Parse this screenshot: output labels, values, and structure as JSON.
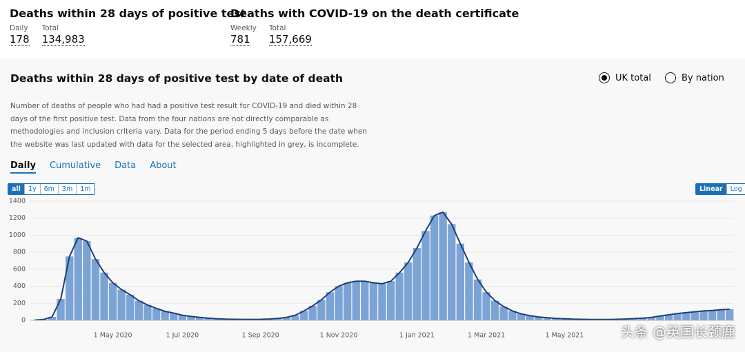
{
  "header": {
    "blocks": [
      {
        "title": "Deaths within 28 days of positive test",
        "metrics": [
          {
            "label": "Daily",
            "value": "178"
          },
          {
            "label": "Total",
            "value": "134,983"
          }
        ]
      },
      {
        "title": "Deaths with COVID-19 on the death certificate",
        "metrics": [
          {
            "label": "Weekly",
            "value": "781"
          },
          {
            "label": "Total",
            "value": "157,669"
          }
        ]
      }
    ]
  },
  "card": {
    "title": "Deaths within 28 days of positive test by date of death",
    "options": [
      "UK total",
      "By nation"
    ],
    "description": "Number of deaths of people who had had a positive test result for COVID-19 and died within 28 days of the first positive test. Data from the four nations are not directly comparable as methodologies and inclusion criteria vary. Data for the period ending 5 days before the date when the website was last updated with data for the selected area, highlighted in grey, is incomplete.",
    "tabs": [
      "Daily",
      "Cumulative",
      "Data",
      "About"
    ],
    "range_buttons": [
      "all",
      "1y",
      "6m",
      "3m",
      "1m"
    ],
    "scale_buttons": [
      "Linear",
      "Log"
    ]
  },
  "chart_data": {
    "type": "bar",
    "categories": [
      null,
      null,
      null,
      null,
      null,
      null,
      null,
      null,
      null,
      "1 May 2020",
      null,
      null,
      null,
      null,
      null,
      null,
      null,
      "1 Jul 2020",
      null,
      null,
      null,
      null,
      null,
      null,
      null,
      null,
      "1 Sep 2020",
      null,
      null,
      null,
      null,
      null,
      null,
      null,
      null,
      "1 Nov 2020",
      null,
      null,
      null,
      null,
      null,
      null,
      null,
      null,
      "1 Jan 2021",
      null,
      null,
      null,
      null,
      null,
      null,
      null,
      "1 Mar 2021",
      null,
      null,
      null,
      null,
      null,
      null,
      null,
      null,
      "1 May 2021",
      null,
      null,
      null,
      null,
      null,
      null,
      null,
      null,
      null,
      null,
      null,
      null,
      null,
      null,
      null,
      null,
      null,
      null,
      null
    ],
    "values": [
      3,
      10,
      40,
      250,
      750,
      970,
      930,
      720,
      560,
      440,
      360,
      300,
      230,
      180,
      140,
      105,
      85,
      60,
      45,
      35,
      25,
      18,
      14,
      12,
      11,
      11,
      12,
      15,
      22,
      35,
      60,
      110,
      170,
      240,
      330,
      400,
      440,
      460,
      460,
      440,
      430,
      460,
      560,
      680,
      850,
      1050,
      1230,
      1270,
      1130,
      900,
      680,
      480,
      330,
      230,
      160,
      110,
      75,
      55,
      40,
      30,
      22,
      18,
      14,
      12,
      10,
      10,
      10,
      12,
      15,
      20,
      25,
      35,
      50,
      65,
      80,
      90,
      100,
      110,
      115,
      125,
      130
    ],
    "color": "#7ba3d6",
    "line_color": "#1d3f73",
    "ylim": [
      0,
      1400
    ],
    "yticks": [
      0,
      200,
      400,
      600,
      800,
      1000,
      1200,
      1400
    ],
    "grid": true
  },
  "watermark": "头条 @英国长颈鹿"
}
